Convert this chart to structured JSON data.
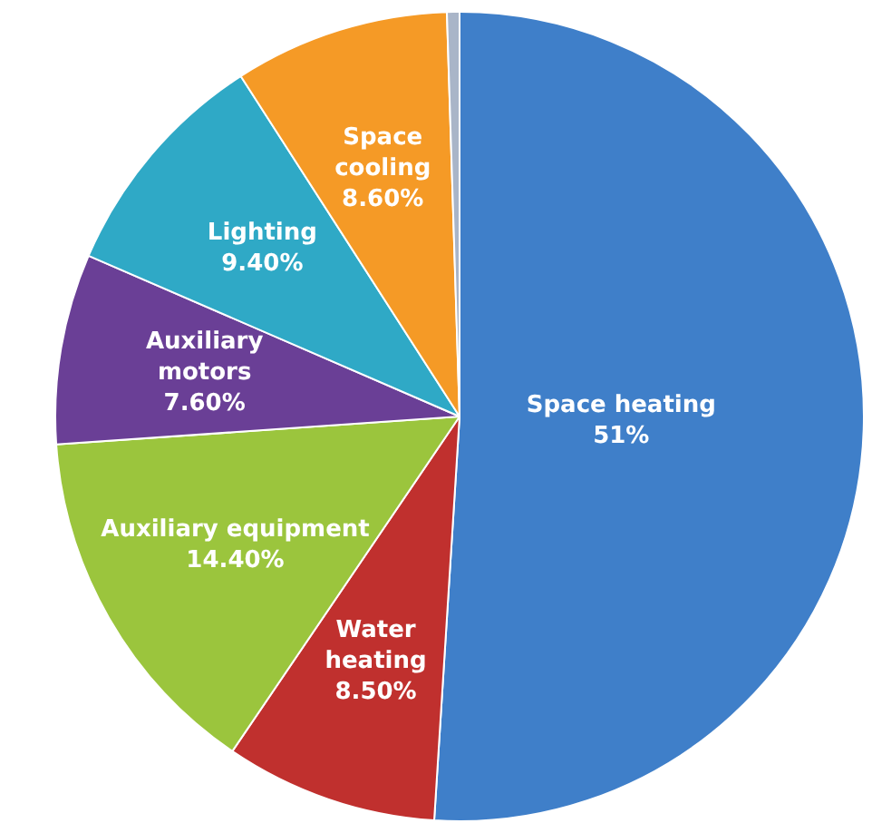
{
  "chart_data": {
    "type": "pie",
    "categories": [
      "Space heating",
      "Water heating",
      "Auxiliary equipment",
      "Auxiliary motors",
      "Lighting",
      "Space cooling",
      null
    ],
    "values": [
      51,
      8.5,
      14.4,
      7.6,
      9.4,
      8.6,
      0.5
    ],
    "colors": [
      "#3f7fc9",
      "#c0302e",
      "#9bc53d",
      "#6a3f96",
      "#2fa9c6",
      "#f59a26",
      "#a9b5c8"
    ],
    "value_labels": [
      "51%",
      "8.50%",
      "14.40%",
      "7.60%",
      "9.40%",
      "8.60%",
      null
    ],
    "legend": false
  }
}
